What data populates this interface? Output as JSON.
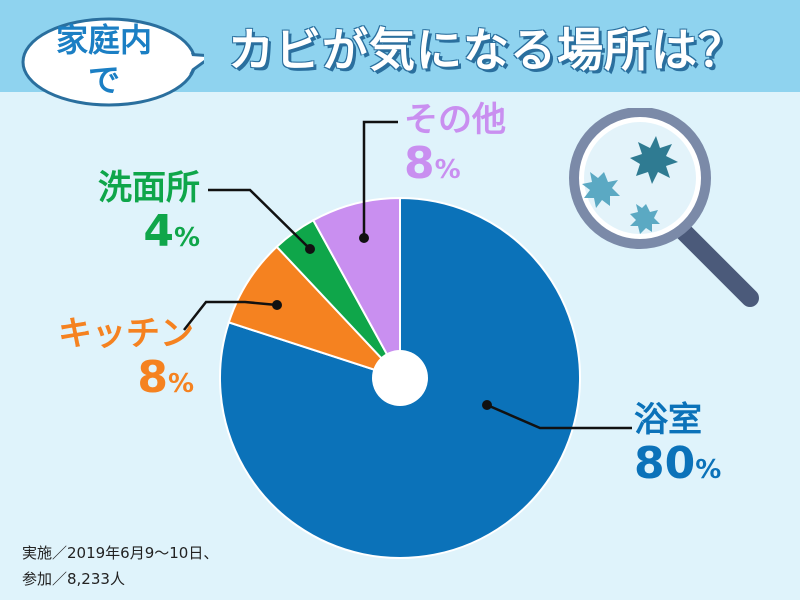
{
  "title": "カビが気になる場所は？",
  "bubble": {
    "line1": "家庭内",
    "line2": "で"
  },
  "note": "実施／2019年6月9〜10日、\n参加／8,233人",
  "colors": {
    "bath": "#0b72b9",
    "kitchen": "#f58220",
    "washroom": "#0fa64a",
    "other": "#c98ff0"
  },
  "chart_data": {
    "type": "pie",
    "slices": [
      {
        "label": "浴室",
        "value": 80,
        "pct_text": "80",
        "color": "#0b72b9"
      },
      {
        "label": "キッチン",
        "value": 8,
        "pct_text": "8",
        "color": "#f58220"
      },
      {
        "label": "洗面所",
        "value": 4,
        "pct_text": "4",
        "color": "#0fa64a"
      },
      {
        "label": "その他",
        "value": 8,
        "pct_text": "8",
        "color": "#c98ff0"
      }
    ],
    "unit": "%"
  }
}
